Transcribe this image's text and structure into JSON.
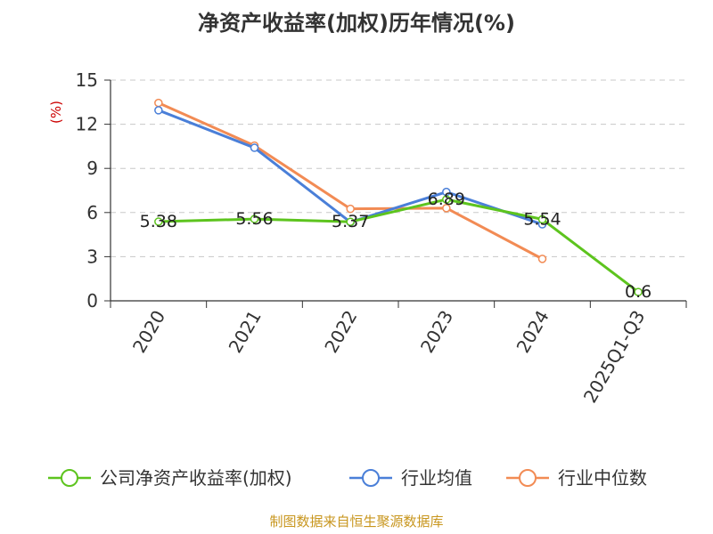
{
  "chart_data": {
    "type": "line",
    "title": "净资产收益率(加权)历年情况(%)",
    "ylabel": "(%)",
    "xlabel": "",
    "categories": [
      "2020",
      "2021",
      "2022",
      "2023",
      "2024",
      "2025Q1-Q3"
    ],
    "ylim": [
      0,
      15
    ],
    "yticks": [
      "0",
      "3",
      "6",
      "9",
      "12",
      "15"
    ],
    "grid": "horizontal dashed",
    "legend_position": "bottom",
    "series": [
      {
        "name": "公司净资产收益率(加权)",
        "color": "#5dc41e",
        "values": [
          5.38,
          5.56,
          5.37,
          6.89,
          5.54,
          0.6
        ],
        "labels": [
          "5.38",
          "5.56",
          "5.37",
          "6.89",
          "5.54",
          "0.6"
        ]
      },
      {
        "name": "行业均值",
        "color": "#4a7fd8",
        "values": [
          12.95,
          10.4,
          5.35,
          7.4,
          5.2,
          null
        ]
      },
      {
        "name": "行业中位数",
        "color": "#f28b54",
        "values": [
          13.45,
          10.55,
          6.25,
          6.3,
          2.85,
          null
        ]
      }
    ]
  },
  "footer": {
    "source": "制图数据来自恒生聚源数据库"
  }
}
